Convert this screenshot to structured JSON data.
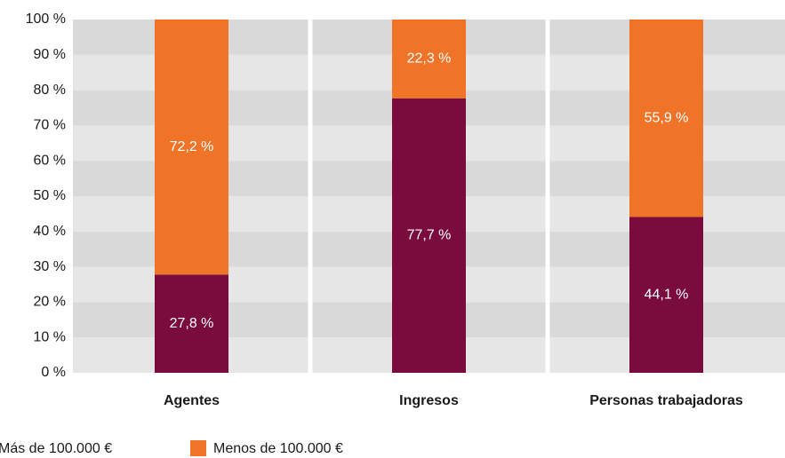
{
  "chart_data": {
    "type": "stacked_bar",
    "categories": [
      "Agentes",
      "Ingresos",
      "Personas trabajadoras"
    ],
    "series": [
      {
        "name": "Más de 100.000 €",
        "color": "#7a0b3d",
        "values": [
          27.8,
          77.7,
          44.1
        ],
        "value_labels": [
          "27,8 %",
          "77,7 %",
          "44,1 %"
        ]
      },
      {
        "name": "Menos de 100.000 €",
        "color": "#f07428",
        "values": [
          72.2,
          22.3,
          55.9
        ],
        "value_labels": [
          "72,2 %",
          "22,3 %",
          "55,9 %"
        ]
      }
    ],
    "ylim": [
      0,
      100
    ],
    "yticks": [
      {
        "value": 0,
        "label": "0 %"
      },
      {
        "value": 10,
        "label": "10 %"
      },
      {
        "value": 20,
        "label": "20 %"
      },
      {
        "value": 30,
        "label": "30 %"
      },
      {
        "value": 40,
        "label": "40 %"
      },
      {
        "value": 50,
        "label": "50 %"
      },
      {
        "value": 60,
        "label": "60 %"
      },
      {
        "value": 70,
        "label": "70 %"
      },
      {
        "value": 80,
        "label": "80 %"
      },
      {
        "value": 90,
        "label": "90 %"
      },
      {
        "value": 100,
        "label": "100 %"
      }
    ],
    "grid": true,
    "legend": "bottom-left"
  }
}
